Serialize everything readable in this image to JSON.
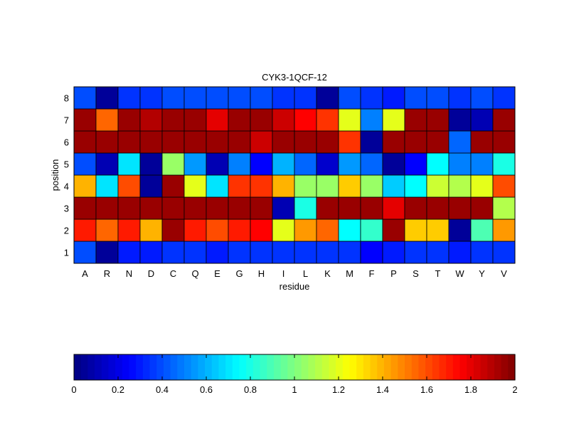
{
  "chart_data": {
    "type": "heatmap",
    "title": "CYK3-1QCF-12",
    "xlabel": "residue",
    "ylabel": "position",
    "x_categories": [
      "A",
      "R",
      "N",
      "D",
      "C",
      "Q",
      "E",
      "G",
      "H",
      "I",
      "L",
      "K",
      "M",
      "F",
      "P",
      "S",
      "T",
      "W",
      "Y",
      "V"
    ],
    "y_categories": [
      "1",
      "2",
      "3",
      "4",
      "5",
      "6",
      "7",
      "8"
    ],
    "values": [
      [
        0.4,
        0.05,
        0.3,
        0.3,
        0.35,
        0.35,
        0.3,
        0.35,
        0.35,
        0.35,
        0.35,
        0.35,
        0.35,
        0.25,
        0.3,
        0.35,
        0.35,
        0.3,
        0.35,
        0.35
      ],
      [
        1.7,
        1.55,
        1.7,
        1.4,
        1.95,
        1.7,
        1.6,
        1.7,
        1.75,
        1.2,
        1.45,
        1.55,
        0.75,
        0.85,
        1.95,
        1.35,
        1.35,
        0.05,
        0.9,
        1.45
      ],
      [
        1.95,
        1.95,
        1.95,
        1.95,
        1.95,
        1.95,
        1.95,
        1.95,
        1.95,
        0.1,
        0.8,
        1.95,
        1.95,
        1.95,
        1.8,
        1.95,
        1.95,
        1.95,
        1.95,
        1.1
      ],
      [
        1.4,
        0.7,
        1.6,
        0.05,
        1.95,
        1.2,
        0.7,
        1.65,
        1.65,
        1.4,
        1.05,
        1.05,
        1.35,
        1.05,
        0.65,
        0.75,
        1.15,
        1.1,
        1.2,
        1.6
      ],
      [
        0.4,
        0.1,
        0.7,
        0.05,
        1.05,
        0.55,
        0.1,
        0.5,
        0.25,
        0.6,
        0.45,
        0.15,
        0.55,
        0.45,
        0.05,
        0.25,
        0.75,
        0.5,
        0.5,
        0.8
      ],
      [
        1.95,
        1.95,
        1.95,
        1.95,
        1.95,
        1.95,
        1.95,
        1.95,
        1.85,
        1.95,
        1.95,
        1.95,
        1.65,
        0.05,
        1.95,
        1.95,
        1.95,
        0.45,
        1.95,
        1.95
      ],
      [
        1.95,
        1.55,
        1.95,
        1.9,
        1.95,
        1.95,
        1.8,
        1.95,
        1.95,
        1.85,
        1.75,
        1.65,
        1.2,
        0.5,
        1.2,
        1.95,
        1.95,
        0.05,
        0.1,
        1.95
      ],
      [
        0.4,
        0.05,
        0.35,
        0.35,
        0.4,
        0.4,
        0.4,
        0.4,
        0.4,
        0.35,
        0.35,
        0.05,
        0.4,
        0.35,
        0.3,
        0.4,
        0.4,
        0.35,
        0.4,
        0.35
      ]
    ],
    "zlim": [
      0,
      2
    ],
    "colorbar": {
      "ticks": [
        0,
        0.2,
        0.4,
        0.6,
        0.8,
        1,
        1.2,
        1.4,
        1.6,
        1.8,
        2
      ],
      "tick_labels": [
        "0",
        "0.2",
        "0.4",
        "0.6",
        "0.8",
        "1",
        "1.2",
        "1.4",
        "1.6",
        "1.8",
        "2"
      ],
      "orientation": "horizontal",
      "levels": 64
    },
    "colormap": "jet",
    "grid": false
  }
}
